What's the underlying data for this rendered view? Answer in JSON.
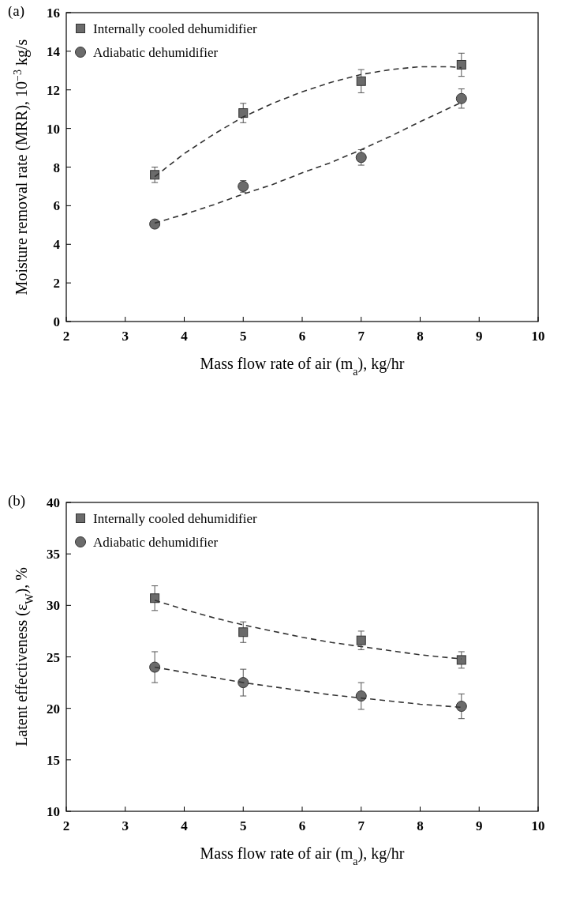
{
  "chart_data": [
    {
      "type": "scatter",
      "annotations": [
        "(a)"
      ],
      "xlabel": "Mass flow rate of air (m$_{a}$), kg/hr",
      "ylabel": "Moisture removal rate (MRR), 10$^{−3}$ kg/s",
      "xlim": [
        2,
        10
      ],
      "xticks": [
        2,
        3,
        4,
        5,
        6,
        7,
        8,
        9,
        10
      ],
      "ylim": [
        0,
        16
      ],
      "yticks": [
        0,
        2,
        4,
        6,
        8,
        10,
        12,
        14,
        16
      ],
      "legend": "top left",
      "grid": false,
      "series": [
        {
          "name": "Internally cooled dehumidifier",
          "color": "#6b6b6b",
          "marker": "square",
          "x": [
            3.5,
            5,
            7,
            8.7
          ],
          "values": [
            7.6,
            10.8,
            12.45,
            13.3
          ],
          "errors": [
            0.4,
            0.5,
            0.6,
            0.6
          ]
        },
        {
          "name": "Adiabatic dehumidifier",
          "color": "#6b6b6b",
          "marker": "circle",
          "x": [
            3.5,
            5,
            7,
            8.7
          ],
          "values": [
            5.05,
            7.0,
            8.5,
            11.55
          ],
          "errors": [
            0.15,
            0.3,
            0.4,
            0.5
          ]
        },
        {
          "type": "line",
          "color": "#333333",
          "line_style": "dashed",
          "x": [
            3.5,
            4,
            4.5,
            5,
            5.5,
            6,
            6.5,
            7,
            7.5,
            8,
            8.5,
            8.7
          ],
          "values": [
            7.5,
            8.7,
            9.7,
            10.6,
            11.3,
            11.9,
            12.4,
            12.8,
            13.05,
            13.2,
            13.2,
            13.15
          ]
        },
        {
          "type": "line",
          "color": "#333333",
          "line_style": "dashed",
          "x": [
            3.5,
            4,
            4.5,
            5,
            5.5,
            6,
            6.5,
            7,
            7.5,
            8,
            8.7
          ],
          "values": [
            5.1,
            5.55,
            6.05,
            6.6,
            7.1,
            7.7,
            8.25,
            8.9,
            9.6,
            10.35,
            11.35
          ]
        }
      ]
    },
    {
      "type": "scatter",
      "annotations": [
        "(b)"
      ],
      "xlabel": "Mass flow rate of air (m$_{a}$), kg/hr",
      "ylabel": "Latent effectiveness (ε$_{W}$), %",
      "xlim": [
        2,
        10
      ],
      "xticks": [
        2,
        3,
        4,
        5,
        6,
        7,
        8,
        9,
        10
      ],
      "ylim": [
        10,
        40
      ],
      "yticks": [
        10,
        15,
        20,
        25,
        30,
        35,
        40
      ],
      "legend": "top left",
      "grid": false,
      "series": [
        {
          "name": "Internally cooled dehumidifier",
          "color": "#6b6b6b",
          "marker": "square",
          "x": [
            3.5,
            5,
            7,
            8.7
          ],
          "values": [
            30.7,
            27.4,
            26.6,
            24.7
          ],
          "errors": [
            1.2,
            1.0,
            0.9,
            0.8
          ]
        },
        {
          "name": "Adiabatic dehumidifier",
          "color": "#6b6b6b",
          "marker": "circle",
          "x": [
            3.5,
            5,
            7,
            8.7
          ],
          "values": [
            24.0,
            22.5,
            21.2,
            20.2
          ],
          "errors": [
            1.5,
            1.3,
            1.3,
            1.2
          ]
        },
        {
          "type": "line",
          "color": "#333333",
          "line_style": "dashed",
          "x": [
            3.5,
            4,
            4.5,
            5,
            5.5,
            6,
            6.5,
            7,
            7.5,
            8,
            8.7
          ],
          "values": [
            30.5,
            29.6,
            28.8,
            28.1,
            27.5,
            26.9,
            26.4,
            26.0,
            25.6,
            25.2,
            24.8
          ]
        },
        {
          "type": "line",
          "color": "#333333",
          "line_style": "dashed",
          "x": [
            3.5,
            4,
            4.5,
            5,
            5.5,
            6,
            6.5,
            7,
            7.5,
            8,
            8.7
          ],
          "values": [
            24.0,
            23.5,
            23.0,
            22.5,
            22.1,
            21.7,
            21.3,
            21.0,
            20.7,
            20.4,
            20.1
          ]
        }
      ]
    }
  ]
}
